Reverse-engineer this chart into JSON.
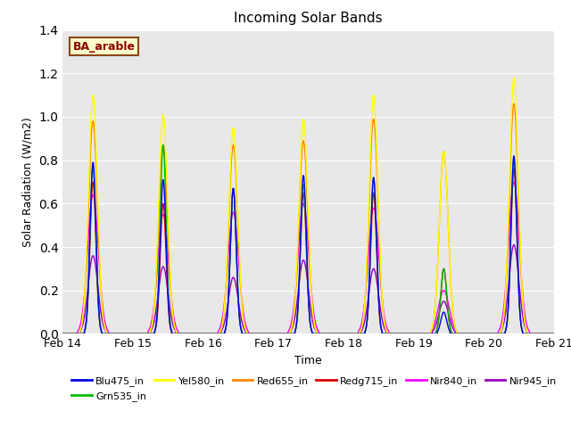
{
  "title": "Incoming Solar Bands",
  "xlabel": "Time",
  "ylabel": "Solar Radiation (W/m2)",
  "annotation": "BA_arable",
  "annotation_color": "#8B0000",
  "annotation_bg": "#FFFFCC",
  "annotation_border": "#8B4513",
  "ylim": [
    0,
    1.4
  ],
  "xlim_start": 0,
  "xlim_end": 7,
  "xtick_labels": [
    "Feb 14",
    "Feb 15",
    "Feb 16",
    "Feb 17",
    "Feb 18",
    "Feb 19",
    "Feb 20",
    "Feb 21"
  ],
  "xtick_positions": [
    0,
    1,
    2,
    3,
    4,
    5,
    6,
    7
  ],
  "plot_bg": "#E8E8E8",
  "series_colors": {
    "Blu475_in": "#0000EE",
    "Grn535_in": "#00BB00",
    "Yel580_in": "#FFFF00",
    "Red655_in": "#FF8800",
    "Redg715_in": "#DD0000",
    "Nir840_in": "#FF00FF",
    "Nir945_in": "#9900BB"
  },
  "day_peaks": {
    "Blu475_in": [
      0.79,
      0.71,
      0.67,
      0.73,
      0.72,
      0.1,
      0.82
    ],
    "Grn535_in": [
      0.77,
      0.87,
      0.67,
      0.69,
      0.72,
      0.3,
      0.8
    ],
    "Yel580_in": [
      1.1,
      1.01,
      0.95,
      0.99,
      1.1,
      0.84,
      1.18
    ],
    "Red655_in": [
      0.98,
      0.87,
      0.87,
      0.89,
      0.99,
      0.84,
      1.06
    ],
    "Redg715_in": [
      0.7,
      0.6,
      0.67,
      0.65,
      0.65,
      0.3,
      0.76
    ],
    "Nir840_in": [
      0.64,
      0.55,
      0.56,
      0.6,
      0.58,
      0.2,
      0.7
    ],
    "Nir945_in": [
      0.36,
      0.31,
      0.26,
      0.34,
      0.3,
      0.15,
      0.41
    ]
  },
  "day_widths": {
    "Blu475_in": 0.12,
    "Grn535_in": 0.12,
    "Yel580_in": 0.18,
    "Red655_in": 0.18,
    "Redg715_in": 0.12,
    "Nir840_in": 0.22,
    "Nir945_in": 0.2
  },
  "day_centers": [
    0.43,
    1.43,
    2.43,
    3.43,
    4.43,
    5.43,
    6.43
  ],
  "days": 7,
  "points_per_day": 500
}
